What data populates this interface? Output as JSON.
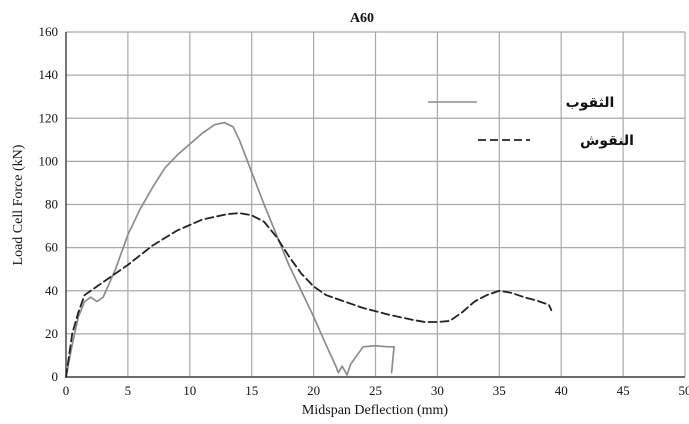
{
  "chart_data": {
    "type": "line",
    "title": "A60",
    "xlabel": "Midspan Deflection (mm)",
    "ylabel": "Load Cell Force (kN)",
    "xlim": [
      0,
      50
    ],
    "ylim": [
      0,
      160
    ],
    "xticks": [
      0,
      5,
      10,
      15,
      20,
      25,
      30,
      35,
      40,
      45,
      50
    ],
    "yticks": [
      0,
      20,
      40,
      60,
      80,
      100,
      120,
      140,
      160
    ],
    "grid": true,
    "legend_position": "top-right",
    "series": [
      {
        "name": "الثقوب",
        "style": "solid",
        "color": "#8c8c8c",
        "points": [
          [
            0,
            0
          ],
          [
            0.5,
            15
          ],
          [
            1,
            28
          ],
          [
            1.5,
            35
          ],
          [
            2,
            37
          ],
          [
            2.5,
            35
          ],
          [
            3,
            37
          ],
          [
            4,
            50
          ],
          [
            5,
            66
          ],
          [
            6,
            78
          ],
          [
            7,
            88
          ],
          [
            8,
            97
          ],
          [
            9,
            103
          ],
          [
            10,
            108
          ],
          [
            11,
            113
          ],
          [
            12,
            117
          ],
          [
            12.8,
            118
          ],
          [
            13.5,
            116
          ],
          [
            14,
            110
          ],
          [
            15,
            95
          ],
          [
            16,
            80
          ],
          [
            17,
            66
          ],
          [
            18,
            52
          ],
          [
            19,
            40
          ],
          [
            20,
            28
          ],
          [
            21,
            15
          ],
          [
            21.8,
            5
          ],
          [
            22,
            2
          ],
          [
            22.3,
            5
          ],
          [
            22.7,
            1
          ],
          [
            23,
            6
          ],
          [
            23.5,
            10
          ],
          [
            24,
            14
          ],
          [
            25,
            14.5
          ],
          [
            26,
            14
          ],
          [
            26.5,
            14
          ],
          [
            26.3,
            2
          ]
        ]
      },
      {
        "name": "النقوش",
        "style": "dashed",
        "color": "#222222",
        "points": [
          [
            0,
            0
          ],
          [
            0.5,
            20
          ],
          [
            1,
            30
          ],
          [
            1.5,
            38
          ],
          [
            2,
            40
          ],
          [
            3,
            44
          ],
          [
            5,
            52
          ],
          [
            7,
            61
          ],
          [
            9,
            68
          ],
          [
            11,
            73
          ],
          [
            13,
            75.5
          ],
          [
            14,
            76
          ],
          [
            15,
            75
          ],
          [
            16,
            72
          ],
          [
            17,
            65
          ],
          [
            18,
            56
          ],
          [
            19,
            48
          ],
          [
            20,
            42
          ],
          [
            21,
            38
          ],
          [
            22,
            36
          ],
          [
            24,
            32
          ],
          [
            26,
            29
          ],
          [
            28,
            26.5
          ],
          [
            29,
            25.5
          ],
          [
            30,
            25.5
          ],
          [
            31,
            26
          ],
          [
            32,
            30
          ],
          [
            33,
            35
          ],
          [
            34,
            38
          ],
          [
            35,
            40
          ],
          [
            36,
            39
          ],
          [
            37,
            37
          ],
          [
            38,
            35.5
          ],
          [
            39,
            33.5
          ],
          [
            39.2,
            31
          ]
        ]
      }
    ]
  }
}
